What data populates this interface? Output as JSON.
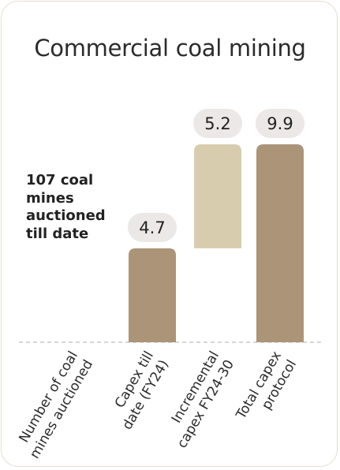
{
  "chart_data": {
    "type": "bar",
    "title": "Commercial coal mining",
    "note": "107 coal mines auctioned till date",
    "categories": [
      "Number of coal mines auctioned",
      "Capex till date (FY24)",
      "Incremental capex FY24-30",
      "Total capex protocol"
    ],
    "category_lines": [
      [
        "Number of coal",
        "mines auctioned"
      ],
      [
        "Capex till",
        "date (FY24)"
      ],
      [
        "Incremental",
        "capex FY24-30"
      ],
      [
        "Total capex",
        "protocol"
      ]
    ],
    "bars": [
      {
        "category": "Capex till date (FY24)",
        "base": 0,
        "value": 4.7,
        "label": "4.7",
        "color": "#ab9477"
      },
      {
        "category": "Incremental capex FY24-30",
        "base": 4.7,
        "value": 5.2,
        "label": "5.2",
        "color": "#d8ccae"
      },
      {
        "category": "Total capex protocol",
        "base": 0,
        "value": 9.9,
        "label": "9.9",
        "color": "#ab9477"
      }
    ],
    "ylim": [
      0,
      9.9
    ],
    "grid": false,
    "colors": {
      "dark": "#ab9477",
      "light": "#d8ccae",
      "label_bg": "#ebe8e6",
      "baseline": "#bdbdbd"
    }
  }
}
